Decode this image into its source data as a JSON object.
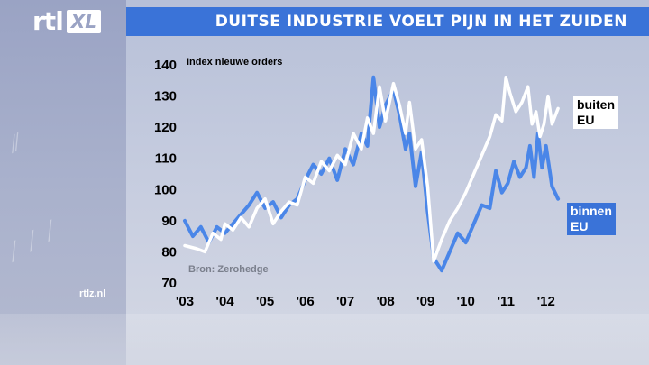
{
  "header": {
    "title": "DUITSE INDUSTRIE VOELT PIJN IN HET ZUIDEN"
  },
  "logo": {
    "rtl": "rtl",
    "xl": "XL"
  },
  "footer": {
    "site": "rtlz.nl"
  },
  "colors": {
    "header": "#3a73d8",
    "outside_eu": "#ffffff",
    "inside_eu": "#4a86e8"
  },
  "chart_data": {
    "type": "line",
    "subtitle": "Index nieuwe orders",
    "source": "Bron: Zerohedge",
    "x_tick_labels": [
      "'03",
      "'04",
      "'05",
      "'06",
      "'07",
      "'08",
      "'09",
      "'10",
      "'11",
      "'12"
    ],
    "y_ticks": [
      70,
      80,
      90,
      100,
      110,
      120,
      130,
      140
    ],
    "ylim": [
      70,
      140
    ],
    "xlim": [
      2003.0,
      2012.5
    ],
    "series": [
      {
        "label_lines": [
          "buiten",
          "EU"
        ],
        "x": [
          2003.0,
          2003.3,
          2003.5,
          2003.7,
          2003.9,
          2004.0,
          2004.2,
          2004.4,
          2004.6,
          2004.8,
          2005.0,
          2005.2,
          2005.4,
          2005.6,
          2005.8,
          2006.0,
          2006.2,
          2006.4,
          2006.6,
          2006.8,
          2007.0,
          2007.2,
          2007.4,
          2007.55,
          2007.7,
          2007.85,
          2008.0,
          2008.2,
          2008.35,
          2008.5,
          2008.6,
          2008.75,
          2008.9,
          2009.05,
          2009.2,
          2009.4,
          2009.6,
          2009.8,
          2010.0,
          2010.2,
          2010.4,
          2010.6,
          2010.75,
          2010.9,
          2011.0,
          2011.1,
          2011.25,
          2011.4,
          2011.55,
          2011.65,
          2011.75,
          2011.85,
          2011.95,
          2012.05,
          2012.15,
          2012.3
        ],
        "y": [
          82,
          81,
          80,
          86,
          84,
          89,
          87,
          91,
          88,
          94,
          97,
          89,
          93,
          96,
          95,
          104,
          102,
          109,
          106,
          111,
          108,
          118,
          113,
          123,
          118,
          133,
          122,
          134,
          127,
          118,
          128,
          113,
          116,
          101,
          77,
          84,
          90,
          94,
          99,
          105,
          111,
          117,
          124,
          122,
          136,
          131,
          125,
          128,
          133,
          121,
          125,
          117,
          121,
          130,
          121,
          126
        ]
      },
      {
        "label_lines": [
          "binnen",
          "EU"
        ],
        "x": [
          2003.0,
          2003.2,
          2003.4,
          2003.6,
          2003.8,
          2004.0,
          2004.2,
          2004.4,
          2004.6,
          2004.8,
          2005.0,
          2005.2,
          2005.4,
          2005.6,
          2005.8,
          2006.0,
          2006.2,
          2006.4,
          2006.6,
          2006.8,
          2007.0,
          2007.2,
          2007.4,
          2007.55,
          2007.7,
          2007.85,
          2008.0,
          2008.2,
          2008.35,
          2008.5,
          2008.6,
          2008.75,
          2008.9,
          2009.05,
          2009.2,
          2009.4,
          2009.6,
          2009.8,
          2010.0,
          2010.2,
          2010.4,
          2010.6,
          2010.75,
          2010.9,
          2011.05,
          2011.2,
          2011.35,
          2011.5,
          2011.6,
          2011.7,
          2011.8,
          2011.9,
          2012.0,
          2012.15,
          2012.3
        ],
        "y": [
          90,
          85,
          88,
          83,
          88,
          86,
          89,
          92,
          95,
          99,
          94,
          96,
          91,
          95,
          97,
          103,
          108,
          105,
          110,
          103,
          113,
          108,
          118,
          114,
          136,
          120,
          127,
          132,
          124,
          113,
          118,
          101,
          112,
          93,
          78,
          74,
          80,
          86,
          83,
          89,
          95,
          94,
          106,
          99,
          102,
          109,
          104,
          107,
          114,
          104,
          118,
          107,
          114,
          101,
          97
        ]
      }
    ]
  }
}
